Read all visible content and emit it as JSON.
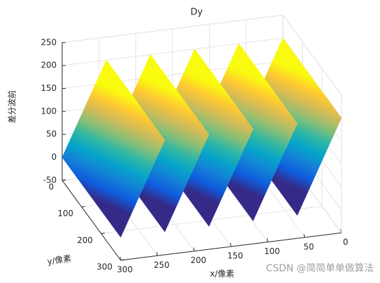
{
  "chart_data": {
    "type": "surface",
    "title": "Dy",
    "xlabel": "x/像素",
    "ylabel": "y/像素",
    "zlabel": "差分波前",
    "x": [
      300,
      240,
      240,
      180,
      180,
      120,
      120,
      60,
      60,
      0
    ],
    "values": [
      0,
      200,
      0,
      200,
      0,
      200,
      0,
      200,
      0,
      200
    ],
    "ylim": [
      0,
      300
    ],
    "xlim": [
      0,
      300
    ],
    "zlim": [
      -50,
      250
    ],
    "xticks": [
      0,
      50,
      100,
      150,
      200,
      250,
      300
    ],
    "yticks": [
      0,
      100,
      200,
      300
    ],
    "zticks": [
      -50,
      0,
      50,
      100,
      150,
      200,
      250
    ],
    "colormap": [
      "#352a87",
      "#0f5cdd",
      "#1481d6",
      "#06a4ca",
      "#2eb7a4",
      "#87bf77",
      "#d1bb59",
      "#fec832",
      "#f9fb0e"
    ],
    "grid": true,
    "watermark": "CSDN @简简单单做算法"
  }
}
